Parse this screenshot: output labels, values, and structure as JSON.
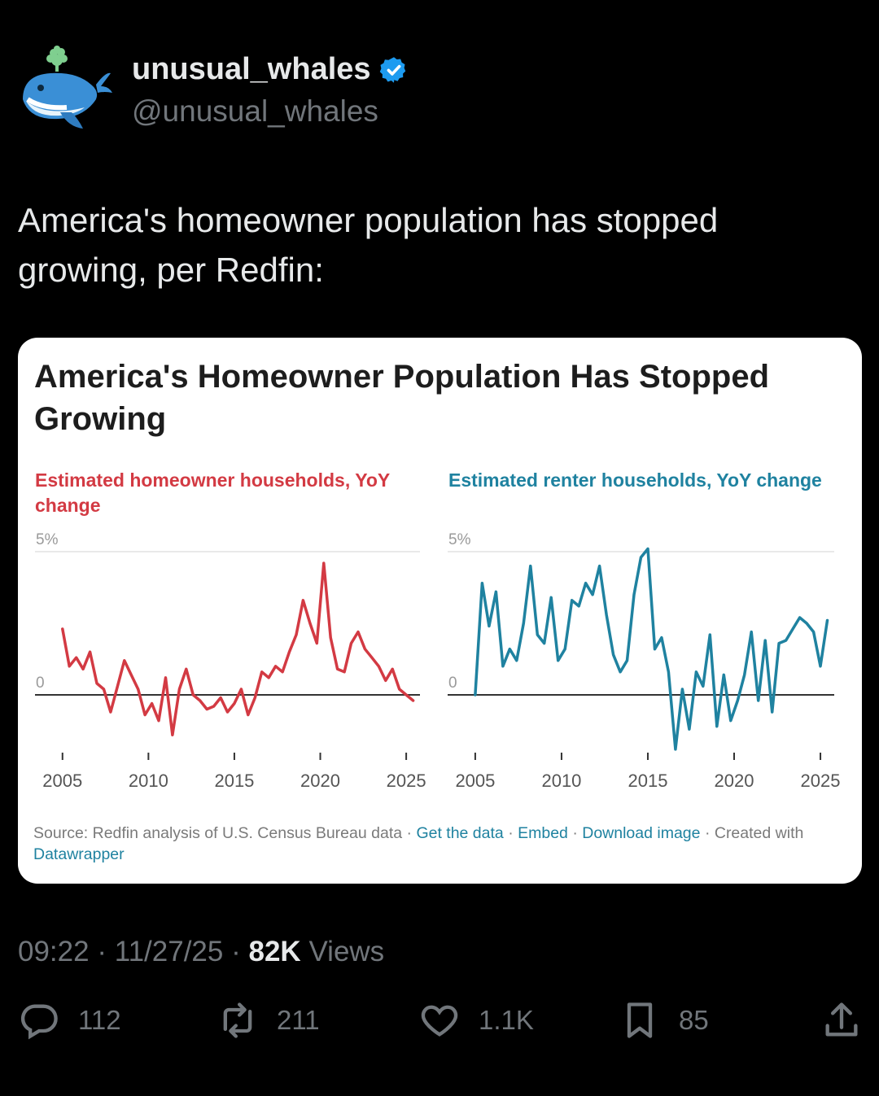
{
  "author": {
    "display_name": "unusual_whales",
    "handle": "@unusual_whales"
  },
  "tweet": {
    "text": "America's homeowner population has stopped growing, per Redfin:",
    "time": "09:22",
    "date": "11/27/25",
    "views_count": "82K",
    "views_label": "Views"
  },
  "actions": {
    "replies": "112",
    "reposts": "211",
    "likes": "1.1K",
    "bookmarks": "85"
  },
  "card": {
    "title": "America's Homeowner Population Has Stopped Growing",
    "source_prefix": "Source: Redfin analysis of U.S. Census Bureau data",
    "get_data": "Get the data",
    "embed": "Embed",
    "download": "Download image",
    "created_with": "Created with",
    "datawrapper": "Datawrapper"
  },
  "colors": {
    "homeowner": "#d33a43",
    "renter": "#1f82a0",
    "verified": "#1d9bf0"
  },
  "chart_data": [
    {
      "type": "line",
      "title": "Estimated homeowner households, YoY change",
      "y_ticks": [
        "5%",
        "0"
      ],
      "x_ticks": [
        "2005",
        "2010",
        "2015",
        "2020",
        "2025"
      ],
      "ylim": [
        -1.5,
        5
      ],
      "series": [
        {
          "x": [
            2005.0,
            2005.4,
            2005.8,
            2006.2,
            2006.6,
            2007.0,
            2007.4,
            2007.8,
            2008.2,
            2008.6,
            2009.0,
            2009.4,
            2009.8,
            2010.2,
            2010.6,
            2011.0,
            2011.4,
            2011.8,
            2012.2,
            2012.6,
            2013.0,
            2013.4,
            2013.8,
            2014.2,
            2014.6,
            2015.0,
            2015.4,
            2015.8,
            2016.2,
            2016.6,
            2017.0,
            2017.4,
            2017.8,
            2018.2,
            2018.6,
            2019.0,
            2019.4,
            2019.8,
            2020.2,
            2020.6,
            2021.0,
            2021.4,
            2021.8,
            2022.2,
            2022.6,
            2023.0,
            2023.4,
            2023.8,
            2024.2,
            2024.6,
            2025.0,
            2025.4
          ],
          "y": [
            2.3,
            1.0,
            1.3,
            0.9,
            1.5,
            0.4,
            0.2,
            -0.6,
            0.3,
            1.2,
            0.7,
            0.2,
            -0.7,
            -0.3,
            -0.9,
            0.6,
            -1.4,
            0.2,
            0.9,
            0.0,
            -0.2,
            -0.5,
            -0.4,
            -0.1,
            -0.6,
            -0.3,
            0.2,
            -0.7,
            -0.1,
            0.8,
            0.6,
            1.0,
            0.8,
            1.5,
            2.1,
            3.3,
            2.5,
            1.8,
            4.6,
            2.0,
            0.9,
            0.8,
            1.8,
            2.2,
            1.6,
            1.3,
            1.0,
            0.5,
            0.9,
            0.2,
            0.0,
            -0.2
          ]
        }
      ]
    },
    {
      "type": "line",
      "title": "Estimated renter households, YoY change",
      "y_ticks": [
        "5%",
        "0"
      ],
      "x_ticks": [
        "2005",
        "2010",
        "2015",
        "2020",
        "2025"
      ],
      "ylim": [
        -2.5,
        5
      ],
      "series": [
        {
          "x": [
            2005.0,
            2005.4,
            2005.8,
            2006.2,
            2006.6,
            2007.0,
            2007.4,
            2007.8,
            2008.2,
            2008.6,
            2009.0,
            2009.4,
            2009.8,
            2010.2,
            2010.6,
            2011.0,
            2011.4,
            2011.8,
            2012.2,
            2012.6,
            2013.0,
            2013.4,
            2013.8,
            2014.2,
            2014.6,
            2015.0,
            2015.4,
            2015.8,
            2016.2,
            2016.6,
            2017.0,
            2017.4,
            2017.8,
            2018.2,
            2018.6,
            2019.0,
            2019.4,
            2019.8,
            2020.2,
            2020.6,
            2021.0,
            2021.4,
            2021.8,
            2022.2,
            2022.6,
            2023.0,
            2023.4,
            2023.8,
            2024.2,
            2024.6,
            2025.0,
            2025.4
          ],
          "y": [
            0.0,
            3.9,
            2.4,
            3.6,
            1.0,
            1.6,
            1.2,
            2.5,
            4.5,
            2.1,
            1.8,
            3.4,
            1.2,
            1.6,
            3.3,
            3.1,
            3.9,
            3.5,
            4.5,
            2.8,
            1.4,
            0.8,
            1.2,
            3.5,
            4.8,
            5.1,
            1.6,
            2.0,
            0.8,
            -1.9,
            0.2,
            -1.2,
            0.8,
            0.3,
            2.1,
            -1.1,
            0.7,
            -0.9,
            -0.2,
            0.7,
            2.2,
            -0.2,
            1.9,
            -0.6,
            1.8,
            1.9,
            2.3,
            2.7,
            2.5,
            2.2,
            1.0,
            2.6
          ]
        }
      ]
    }
  ]
}
